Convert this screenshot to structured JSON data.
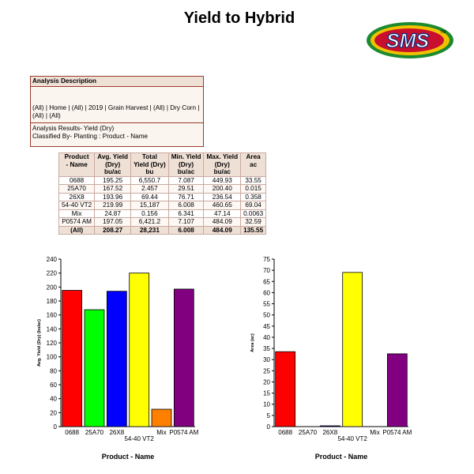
{
  "header": {
    "title": "Yield to Hybrid",
    "logo_text": "SMS",
    "logo_tm": "TM"
  },
  "analysis": {
    "heading": "Analysis Description",
    "filters_line1": "(All) | Home | (All) | 2019 | Grain Harvest | (All) | Dry Corn |",
    "filters_line2": "(All) | (All)",
    "results_line1": "Analysis Results- Yield (Dry)",
    "results_line2": "Classified By- Planting : Product - Name"
  },
  "table": {
    "headers": [
      [
        "Product",
        "- Name",
        ""
      ],
      [
        "Avg. Yield",
        "(Dry)",
        "bu/ac"
      ],
      [
        "Total",
        "Yield (Dry)",
        "bu"
      ],
      [
        "Min. Yield",
        "(Dry)",
        "bu/ac"
      ],
      [
        "Max. Yield",
        "(Dry)",
        "bu/ac"
      ],
      [
        "Area",
        "",
        "ac"
      ]
    ],
    "rows": [
      [
        "0688",
        "195.25",
        "6,550.7",
        "7.087",
        "449.93",
        "33.55"
      ],
      [
        "25A70",
        "167.52",
        "2.457",
        "29.51",
        "200.40",
        "0.015"
      ],
      [
        "26X8",
        "193.96",
        "69.44",
        "76.71",
        "236.54",
        "0.358"
      ],
      [
        "54-40 VT2",
        "219.99",
        "15,187",
        "6.008",
        "460.65",
        "69.04"
      ],
      [
        "Mix",
        "24.87",
        "0.156",
        "6.341",
        "47.14",
        "0.0063"
      ],
      [
        "P0574 AM",
        "197.05",
        "6,421.2",
        "7.107",
        "484.09",
        "32.59"
      ]
    ],
    "total": [
      "(All)",
      "208.27",
      "28,231",
      "6.008",
      "484.09",
      "135.55"
    ]
  },
  "chart_data": [
    {
      "type": "bar",
      "categories": [
        "0688",
        "25A70",
        "26X8",
        "54-40 VT2",
        "Mix",
        "P0574 AM"
      ],
      "values": [
        195.25,
        167.52,
        193.96,
        219.99,
        24.87,
        197.05
      ],
      "colors": [
        "#ff0000",
        "#00ff00",
        "#0000ff",
        "#ffff00",
        "#ff8000",
        "#800080"
      ],
      "ylabel": "Avg. Yield (Dry) (bu/ac)",
      "xlabel": "Product - Name",
      "ylim": [
        0,
        240
      ],
      "yticks": [
        0,
        20,
        40,
        60,
        80,
        100,
        120,
        140,
        160,
        180,
        200,
        220,
        240
      ],
      "grid": false
    },
    {
      "type": "bar",
      "categories": [
        "0688",
        "25A70",
        "26X8",
        "54-40 VT2",
        "Mix",
        "P0574 AM"
      ],
      "values": [
        33.55,
        0.015,
        0.358,
        69.04,
        0.0063,
        32.59
      ],
      "colors": [
        "#ff0000",
        "#00ff00",
        "#0000ff",
        "#ffff00",
        "#ff8000",
        "#800080"
      ],
      "ylabel": "Area (ac)",
      "xlabel": "Product - Name",
      "ylim": [
        0,
        75
      ],
      "yticks": [
        0,
        5,
        10,
        15,
        20,
        25,
        30,
        35,
        40,
        45,
        50,
        55,
        60,
        65,
        70,
        75
      ],
      "grid": false
    }
  ]
}
